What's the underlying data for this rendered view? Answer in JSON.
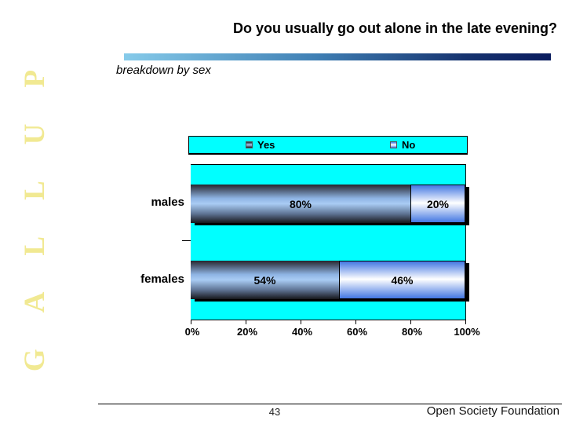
{
  "slide": {
    "title": "Do you usually go out alone in the late evening?",
    "subtitle": "breakdown by sex",
    "watermark": "GALLUP",
    "page_number": "43",
    "footer_org": "Open Society Foundation"
  },
  "colors": {
    "plot_background": "#00FFFF",
    "rule_gradient_start": "#86CBEA",
    "rule_gradient_end": "#0A1C5E",
    "watermark_yellow": "#F1E992",
    "yes_bar_center": "#A9CCF4",
    "no_bar_edge": "#4377E2"
  },
  "chart_data": {
    "type": "bar",
    "orientation": "horizontal",
    "stacked": true,
    "title": "",
    "xlabel": "",
    "ylabel": "",
    "categories": [
      "males",
      "females"
    ],
    "series": [
      {
        "name": "Yes",
        "values": [
          80,
          54
        ]
      },
      {
        "name": "No",
        "values": [
          20,
          46
        ]
      }
    ],
    "value_labels": {
      "males": [
        "80%",
        "20%"
      ],
      "females": [
        "54%",
        "46%"
      ]
    },
    "x_ticks": [
      "0%",
      "20%",
      "40%",
      "60%",
      "80%",
      "100%"
    ],
    "xlim": [
      0,
      100
    ],
    "legend_position": "top",
    "grid": false,
    "plot_background": "#00FFFF"
  }
}
